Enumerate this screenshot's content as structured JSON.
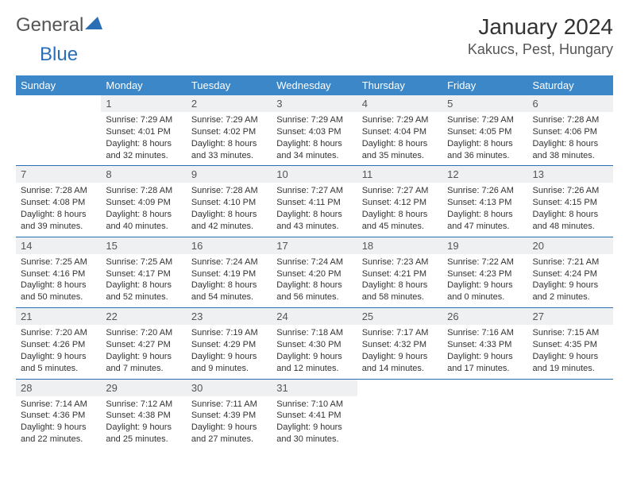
{
  "logo": {
    "part1": "General",
    "part2": "Blue"
  },
  "title": "January 2024",
  "location": "Kakucs, Pest, Hungary",
  "header_bg": "#3b87c8",
  "row_divider": "#2a6fb5",
  "daynum_bg": "#eef0f2",
  "day_names": [
    "Sunday",
    "Monday",
    "Tuesday",
    "Wednesday",
    "Thursday",
    "Friday",
    "Saturday"
  ],
  "weeks": [
    [
      null,
      {
        "n": "1",
        "sr": "Sunrise: 7:29 AM",
        "ss": "Sunset: 4:01 PM",
        "d1": "Daylight: 8 hours",
        "d2": "and 32 minutes."
      },
      {
        "n": "2",
        "sr": "Sunrise: 7:29 AM",
        "ss": "Sunset: 4:02 PM",
        "d1": "Daylight: 8 hours",
        "d2": "and 33 minutes."
      },
      {
        "n": "3",
        "sr": "Sunrise: 7:29 AM",
        "ss": "Sunset: 4:03 PM",
        "d1": "Daylight: 8 hours",
        "d2": "and 34 minutes."
      },
      {
        "n": "4",
        "sr": "Sunrise: 7:29 AM",
        "ss": "Sunset: 4:04 PM",
        "d1": "Daylight: 8 hours",
        "d2": "and 35 minutes."
      },
      {
        "n": "5",
        "sr": "Sunrise: 7:29 AM",
        "ss": "Sunset: 4:05 PM",
        "d1": "Daylight: 8 hours",
        "d2": "and 36 minutes."
      },
      {
        "n": "6",
        "sr": "Sunrise: 7:28 AM",
        "ss": "Sunset: 4:06 PM",
        "d1": "Daylight: 8 hours",
        "d2": "and 38 minutes."
      }
    ],
    [
      {
        "n": "7",
        "sr": "Sunrise: 7:28 AM",
        "ss": "Sunset: 4:08 PM",
        "d1": "Daylight: 8 hours",
        "d2": "and 39 minutes."
      },
      {
        "n": "8",
        "sr": "Sunrise: 7:28 AM",
        "ss": "Sunset: 4:09 PM",
        "d1": "Daylight: 8 hours",
        "d2": "and 40 minutes."
      },
      {
        "n": "9",
        "sr": "Sunrise: 7:28 AM",
        "ss": "Sunset: 4:10 PM",
        "d1": "Daylight: 8 hours",
        "d2": "and 42 minutes."
      },
      {
        "n": "10",
        "sr": "Sunrise: 7:27 AM",
        "ss": "Sunset: 4:11 PM",
        "d1": "Daylight: 8 hours",
        "d2": "and 43 minutes."
      },
      {
        "n": "11",
        "sr": "Sunrise: 7:27 AM",
        "ss": "Sunset: 4:12 PM",
        "d1": "Daylight: 8 hours",
        "d2": "and 45 minutes."
      },
      {
        "n": "12",
        "sr": "Sunrise: 7:26 AM",
        "ss": "Sunset: 4:13 PM",
        "d1": "Daylight: 8 hours",
        "d2": "and 47 minutes."
      },
      {
        "n": "13",
        "sr": "Sunrise: 7:26 AM",
        "ss": "Sunset: 4:15 PM",
        "d1": "Daylight: 8 hours",
        "d2": "and 48 minutes."
      }
    ],
    [
      {
        "n": "14",
        "sr": "Sunrise: 7:25 AM",
        "ss": "Sunset: 4:16 PM",
        "d1": "Daylight: 8 hours",
        "d2": "and 50 minutes."
      },
      {
        "n": "15",
        "sr": "Sunrise: 7:25 AM",
        "ss": "Sunset: 4:17 PM",
        "d1": "Daylight: 8 hours",
        "d2": "and 52 minutes."
      },
      {
        "n": "16",
        "sr": "Sunrise: 7:24 AM",
        "ss": "Sunset: 4:19 PM",
        "d1": "Daylight: 8 hours",
        "d2": "and 54 minutes."
      },
      {
        "n": "17",
        "sr": "Sunrise: 7:24 AM",
        "ss": "Sunset: 4:20 PM",
        "d1": "Daylight: 8 hours",
        "d2": "and 56 minutes."
      },
      {
        "n": "18",
        "sr": "Sunrise: 7:23 AM",
        "ss": "Sunset: 4:21 PM",
        "d1": "Daylight: 8 hours",
        "d2": "and 58 minutes."
      },
      {
        "n": "19",
        "sr": "Sunrise: 7:22 AM",
        "ss": "Sunset: 4:23 PM",
        "d1": "Daylight: 9 hours",
        "d2": "and 0 minutes."
      },
      {
        "n": "20",
        "sr": "Sunrise: 7:21 AM",
        "ss": "Sunset: 4:24 PM",
        "d1": "Daylight: 9 hours",
        "d2": "and 2 minutes."
      }
    ],
    [
      {
        "n": "21",
        "sr": "Sunrise: 7:20 AM",
        "ss": "Sunset: 4:26 PM",
        "d1": "Daylight: 9 hours",
        "d2": "and 5 minutes."
      },
      {
        "n": "22",
        "sr": "Sunrise: 7:20 AM",
        "ss": "Sunset: 4:27 PM",
        "d1": "Daylight: 9 hours",
        "d2": "and 7 minutes."
      },
      {
        "n": "23",
        "sr": "Sunrise: 7:19 AM",
        "ss": "Sunset: 4:29 PM",
        "d1": "Daylight: 9 hours",
        "d2": "and 9 minutes."
      },
      {
        "n": "24",
        "sr": "Sunrise: 7:18 AM",
        "ss": "Sunset: 4:30 PM",
        "d1": "Daylight: 9 hours",
        "d2": "and 12 minutes."
      },
      {
        "n": "25",
        "sr": "Sunrise: 7:17 AM",
        "ss": "Sunset: 4:32 PM",
        "d1": "Daylight: 9 hours",
        "d2": "and 14 minutes."
      },
      {
        "n": "26",
        "sr": "Sunrise: 7:16 AM",
        "ss": "Sunset: 4:33 PM",
        "d1": "Daylight: 9 hours",
        "d2": "and 17 minutes."
      },
      {
        "n": "27",
        "sr": "Sunrise: 7:15 AM",
        "ss": "Sunset: 4:35 PM",
        "d1": "Daylight: 9 hours",
        "d2": "and 19 minutes."
      }
    ],
    [
      {
        "n": "28",
        "sr": "Sunrise: 7:14 AM",
        "ss": "Sunset: 4:36 PM",
        "d1": "Daylight: 9 hours",
        "d2": "and 22 minutes."
      },
      {
        "n": "29",
        "sr": "Sunrise: 7:12 AM",
        "ss": "Sunset: 4:38 PM",
        "d1": "Daylight: 9 hours",
        "d2": "and 25 minutes."
      },
      {
        "n": "30",
        "sr": "Sunrise: 7:11 AM",
        "ss": "Sunset: 4:39 PM",
        "d1": "Daylight: 9 hours",
        "d2": "and 27 minutes."
      },
      {
        "n": "31",
        "sr": "Sunrise: 7:10 AM",
        "ss": "Sunset: 4:41 PM",
        "d1": "Daylight: 9 hours",
        "d2": "and 30 minutes."
      },
      null,
      null,
      null
    ]
  ]
}
